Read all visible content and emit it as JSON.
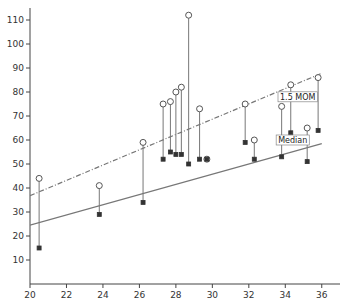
{
  "chart_data": {
    "type": "scatter",
    "x": [
      20.5,
      23.8,
      26.2,
      27.3,
      27.7,
      28.0,
      28.3,
      28.7,
      29.3,
      29.7,
      31.8,
      32.3,
      33.8,
      34.3,
      35.2,
      35.8
    ],
    "series": [
      {
        "type": "scatter",
        "marker": "open-circle",
        "color": "#555555",
        "values": [
          44,
          41,
          59,
          75,
          76,
          80,
          82,
          112,
          73,
          52,
          75,
          60,
          74,
          83,
          65,
          86
        ]
      },
      {
        "type": "scatter",
        "marker": "square",
        "color": "#333333",
        "values": [
          15,
          29,
          34,
          52,
          55,
          54,
          54,
          50,
          52,
          52,
          59,
          52,
          53,
          63,
          51,
          64
        ]
      },
      {
        "type": "line",
        "line_style": "solid",
        "color": "#777777",
        "x": [
          20,
          36
        ],
        "values": [
          24.5,
          58.5
        ]
      },
      {
        "type": "line",
        "line_style": "dashdot",
        "color": "#777777",
        "x": [
          20,
          36
        ],
        "values": [
          36.8,
          87.8
        ]
      }
    ],
    "annotations": [
      {
        "text": "1.5 MOM",
        "x": 33.6,
        "y": 78
      },
      {
        "text": "Median",
        "x": 33.5,
        "y": 60
      }
    ],
    "xlim": [
      20,
      37
    ],
    "ylim": [
      0,
      115
    ],
    "xticks": [
      20,
      22,
      24,
      26,
      28,
      30,
      32,
      34,
      36
    ],
    "yticks": [
      10,
      20,
      30,
      40,
      50,
      60,
      70,
      80,
      90,
      100,
      110
    ],
    "grid": false
  }
}
